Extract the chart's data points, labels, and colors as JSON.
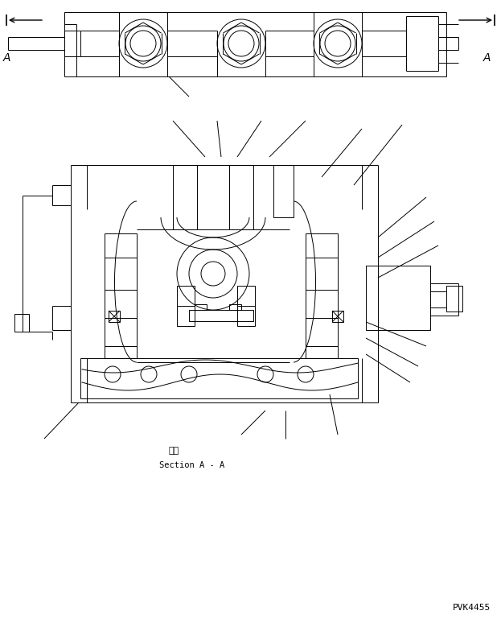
{
  "background_color": "#ffffff",
  "line_color": "#000000",
  "fig_width": 6.23,
  "fig_height": 7.69,
  "dpi": 100,
  "label_section_cn": "断面",
  "label_section_en": "Section A - A",
  "label_A": "A",
  "part_number": "PVK4455"
}
